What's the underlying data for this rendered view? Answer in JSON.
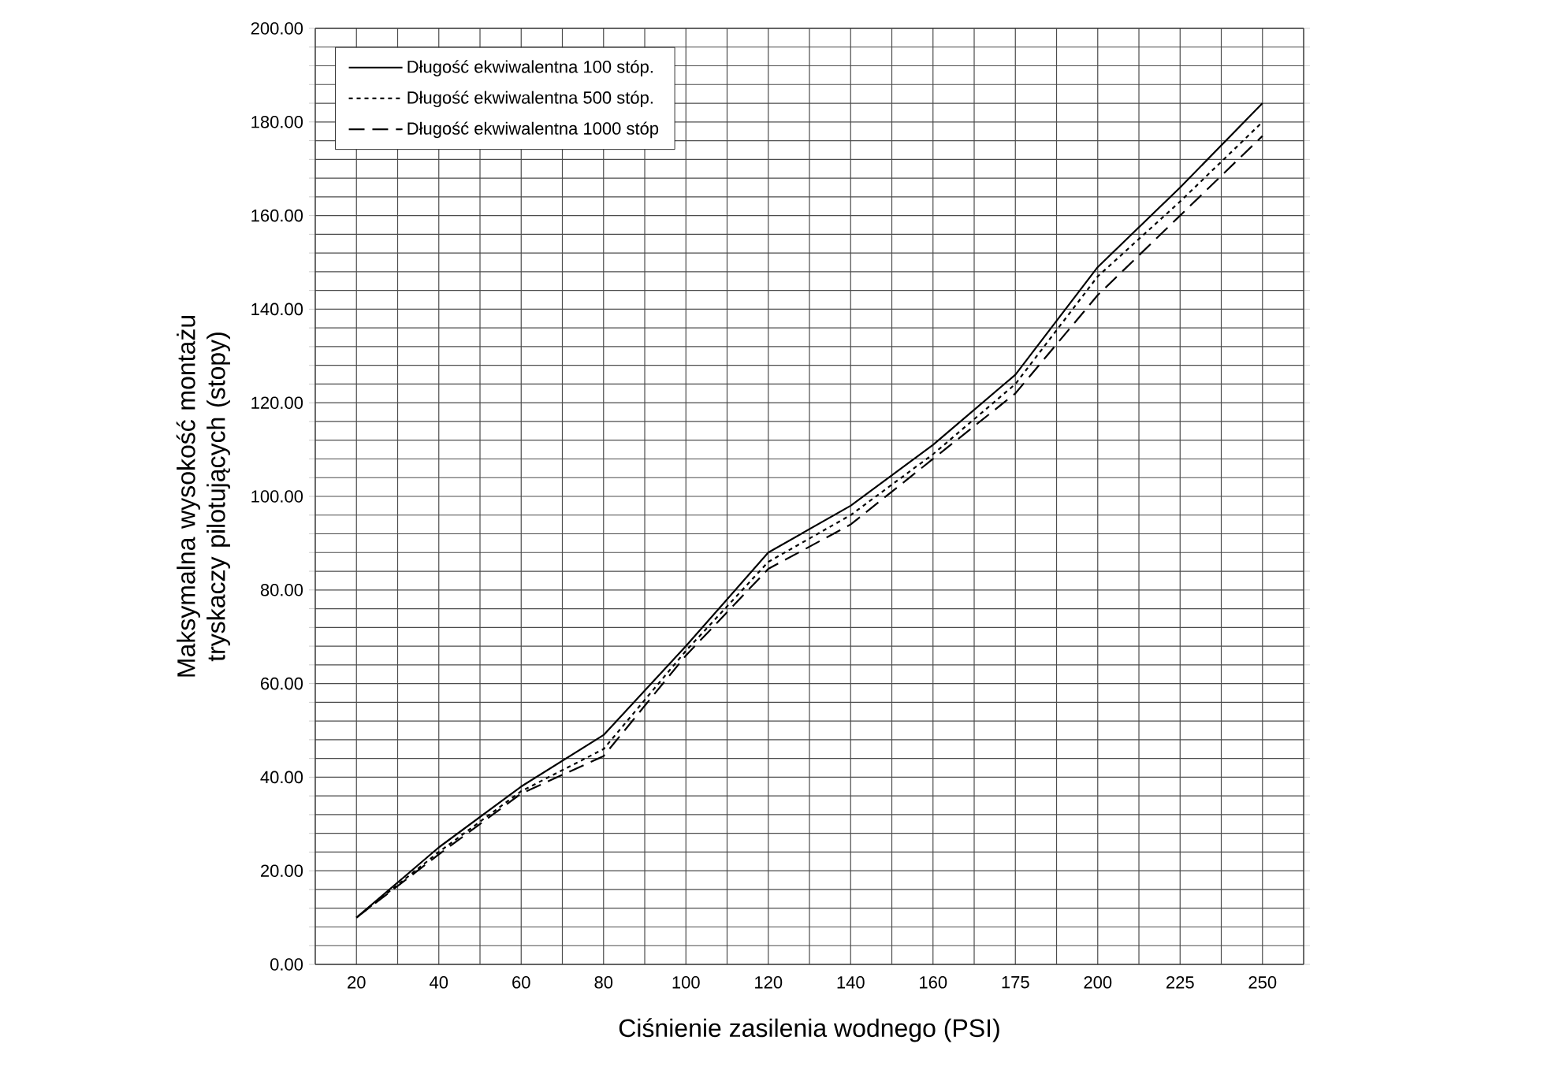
{
  "chart_data": {
    "type": "line",
    "xlabel": "Ciśnienie zasilenia wodnego (PSI)",
    "ylabel": "Maksymalna wysokość montażu tryskaczy pilotujących (stopy)",
    "categories": [
      "20",
      "40",
      "60",
      "80",
      "100",
      "120",
      "140",
      "160",
      "175",
      "200",
      "225",
      "250"
    ],
    "series": [
      {
        "name": "Długość ekwiwalentna 100 stóp.",
        "color": "#000000",
        "line_style": "solid",
        "values": [
          10,
          25,
          38,
          49,
          68,
          88,
          98,
          111,
          126,
          149,
          166,
          184
        ]
      },
      {
        "name": "Długość ekwiwalentna 500 stóp.",
        "color": "#000000",
        "line_style": "dotted",
        "values": [
          10,
          24,
          37,
          46,
          67,
          86,
          96,
          109,
          124,
          147,
          163,
          180
        ]
      },
      {
        "name": "Długość ekwiwalentna 1000 stóp",
        "color": "#000000",
        "line_style": "dashed",
        "values": [
          10,
          23.5,
          36.5,
          44.5,
          66,
          84.5,
          94,
          108,
          122,
          143,
          160,
          177
        ]
      }
    ],
    "ylim": [
      0,
      200
    ],
    "yticks": [
      {
        "value": 0,
        "label": "0.00"
      },
      {
        "value": 4,
        "label": null
      },
      {
        "value": 8,
        "label": null
      },
      {
        "value": 12,
        "label": null
      },
      {
        "value": 16,
        "label": null
      },
      {
        "value": 20,
        "label": "20.00"
      },
      {
        "value": 24,
        "label": null
      },
      {
        "value": 28,
        "label": null
      },
      {
        "value": 32,
        "label": null
      },
      {
        "value": 36,
        "label": null
      },
      {
        "value": 40,
        "label": "40.00"
      },
      {
        "value": 44,
        "label": null
      },
      {
        "value": 48,
        "label": null
      },
      {
        "value": 52,
        "label": null
      },
      {
        "value": 56,
        "label": null
      },
      {
        "value": 60,
        "label": "60.00"
      },
      {
        "value": 64,
        "label": null
      },
      {
        "value": 68,
        "label": null
      },
      {
        "value": 72,
        "label": null
      },
      {
        "value": 76,
        "label": null
      },
      {
        "value": 80,
        "label": "80.00"
      },
      {
        "value": 84,
        "label": null
      },
      {
        "value": 88,
        "label": null
      },
      {
        "value": 92,
        "label": null
      },
      {
        "value": 96,
        "label": null
      },
      {
        "value": 100,
        "label": "100.00"
      },
      {
        "value": 104,
        "label": null
      },
      {
        "value": 108,
        "label": null
      },
      {
        "value": 112,
        "label": null
      },
      {
        "value": 116,
        "label": null
      },
      {
        "value": 120,
        "label": "120.00"
      },
      {
        "value": 124,
        "label": null
      },
      {
        "value": 128,
        "label": null
      },
      {
        "value": 132,
        "label": null
      },
      {
        "value": 136,
        "label": null
      },
      {
        "value": 140,
        "label": "140.00"
      },
      {
        "value": 144,
        "label": null
      },
      {
        "value": 148,
        "label": null
      },
      {
        "value": 152,
        "label": null
      },
      {
        "value": 156,
        "label": null
      },
      {
        "value": 160,
        "label": "160.00"
      },
      {
        "value": 164,
        "label": null
      },
      {
        "value": 168,
        "label": null
      },
      {
        "value": 172,
        "label": null
      },
      {
        "value": 176,
        "label": null
      },
      {
        "value": 180,
        "label": "180.00"
      },
      {
        "value": 184,
        "label": null
      },
      {
        "value": 188,
        "label": null
      },
      {
        "value": 192,
        "label": null
      },
      {
        "value": 196,
        "label": null
      },
      {
        "value": 200,
        "label": "200.00"
      }
    ],
    "grid": true,
    "legend": "top left",
    "marker": "none"
  }
}
